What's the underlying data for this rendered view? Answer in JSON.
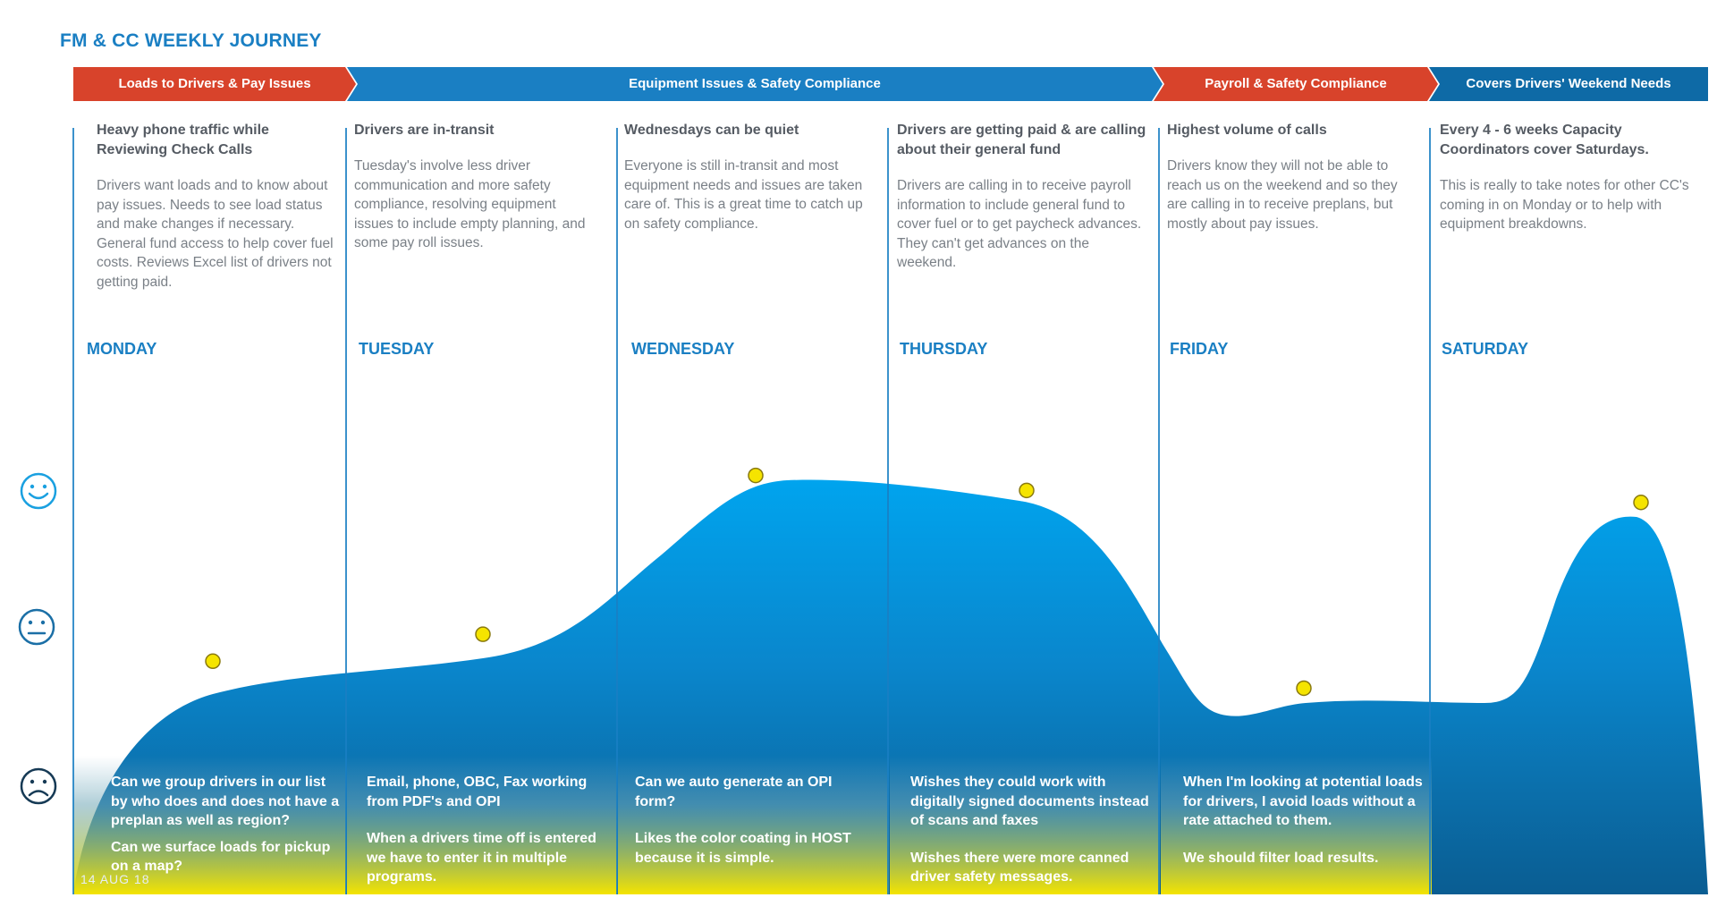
{
  "title": "FM & CC WEEKLY JOURNEY",
  "banners": [
    {
      "label": "Loads to Drivers & Pay Issues",
      "color": "#d8432b"
    },
    {
      "label": "Equipment Issues & Safety Compliance",
      "color": "#1a7fc3"
    },
    {
      "label": "Payroll & Safety Compliance",
      "color": "#d8432b"
    },
    {
      "label": "Covers Drivers' Weekend Needs",
      "color": "#0e6aa6"
    }
  ],
  "columns": [
    {
      "heading": "Heavy phone traffic while Reviewing Check Calls",
      "body": "Drivers want loads and to know about pay issues. Needs to see load status and make changes if necessary. General fund access to help cover fuel costs.  Reviews Excel list of drivers not getting paid.",
      "day": "MONDAY"
    },
    {
      "heading": "Drivers are in-transit",
      "body": "Tuesday's involve less driver communication and more safety compliance, resolving equipment issues to include empty planning, and some pay roll issues.",
      "day": "TUESDAY"
    },
    {
      "heading": "Wednesdays can be quiet",
      "body": "Everyone is still in-transit and most equipment needs and issues are taken care of. This is a great time to catch up on safety compliance.",
      "day": "WEDNESDAY"
    },
    {
      "heading": "Drivers are getting paid & are calling about their general fund",
      "body": "Drivers are calling in to receive payroll information to include general fund to cover fuel or to get paycheck advances. They can't get advances on the weekend.",
      "day": "THURSDAY"
    },
    {
      "heading": "Highest volume of calls",
      "body": "Drivers know they will not be able to reach us on the weekend and so they are calling in to receive preplans, but mostly about pay issues.",
      "day": "FRIDAY"
    },
    {
      "heading": "Every 4 - 6 weeks Capacity Coordinators cover Saturdays.",
      "body": "This is really to take notes for other CC's coming in on Monday or to help with equipment breakdowns.",
      "day": "SATURDAY"
    }
  ],
  "notes": [
    [
      "Can we group drivers in our list by who does and does not have a preplan as well as region?",
      "Can we surface loads for pickup on a map?"
    ],
    [
      "Email, phone, OBC, Fax working from PDF's and OPI",
      "When a drivers time off is entered we have to enter it in multiple programs."
    ],
    [
      "Can we auto generate an OPI form?",
      "Likes the color coating in HOST because it is simple."
    ],
    [
      "Wishes they could work with digitally signed documents instead of scans and faxes",
      "Wishes there were more canned driver safety messages."
    ],
    [
      "When I'm looking at potential loads for drivers,  I avoid loads without a rate attached to them.",
      "We should filter load results."
    ]
  ],
  "faces": {
    "happy": "happy-face-icon",
    "neutral": "neutral-face-icon",
    "sad": "sad-face-icon"
  },
  "emotion_scale": {
    "levels": [
      "sad",
      "neutral",
      "happy"
    ]
  },
  "emotion_points": [
    {
      "day": "MONDAY",
      "level": 0.42
    },
    {
      "day": "TUESDAY",
      "level": 0.51
    },
    {
      "day": "WEDNESDAY",
      "level": 1.04
    },
    {
      "day": "THURSDAY",
      "level": 0.99
    },
    {
      "day": "FRIDAY",
      "level": 0.33
    },
    {
      "day": "SATURDAY",
      "level": 0.95
    }
  ],
  "date_stamp": "14  AUG  18",
  "colors": {
    "accent": "#1a7fc3",
    "red": "#d8432b",
    "curve": "#00a0e8",
    "dot": "#f5e400"
  }
}
